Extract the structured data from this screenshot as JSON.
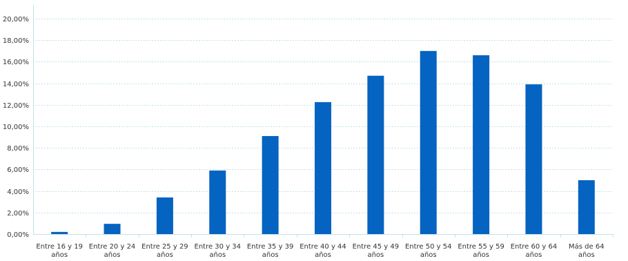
{
  "chart_data": {
    "type": "bar",
    "categories": [
      "Entre 16 y 19 años",
      "Entre 20 y 24 años",
      "Entre 25 y 29 años",
      "Entre 30 y 34 años",
      "Entre 35 y 39 años",
      "Entre 40 y 44 años",
      "Entre 45 y 49 años",
      "Entre 50 y 54 años",
      "Entre 55 y 59 años",
      "Entre 60 y 64 años",
      "Más de 64 años"
    ],
    "category_lines": [
      [
        "Entre 16 y 19",
        "años"
      ],
      [
        "Entre 20 y 24",
        "años"
      ],
      [
        "Entre 25 y 29",
        "años"
      ],
      [
        "Entre 30 y 34",
        "años"
      ],
      [
        "Entre 35 y 39",
        "años"
      ],
      [
        "Entre 40 y 44",
        "años"
      ],
      [
        "Entre 45 y 49",
        "años"
      ],
      [
        "Entre 50 y 54",
        "años"
      ],
      [
        "Entre 55 y 59",
        "años"
      ],
      [
        "Entre 60 y 64",
        "años"
      ],
      [
        "Más de 64",
        "años"
      ]
    ],
    "values": [
      0.2,
      0.95,
      3.4,
      5.9,
      9.1,
      12.25,
      14.7,
      17.0,
      16.6,
      13.9,
      5.0
    ],
    "ylim": [
      0,
      20
    ],
    "yticks": [
      0,
      2,
      4,
      6,
      8,
      10,
      12,
      14,
      16,
      18,
      20
    ],
    "ytick_labels": [
      "0,00%",
      "2,00%",
      "4,00%",
      "6,00%",
      "8,00%",
      "10,00%",
      "12,00%",
      "14,00%",
      "16,00%",
      "18,00%",
      "20,00%"
    ],
    "title": "",
    "xlabel": "",
    "ylabel": "",
    "grid": true,
    "legend": "none",
    "bar_color": "#0563c1",
    "grid_color": "#bfe2ea",
    "text_color": "#333333"
  }
}
